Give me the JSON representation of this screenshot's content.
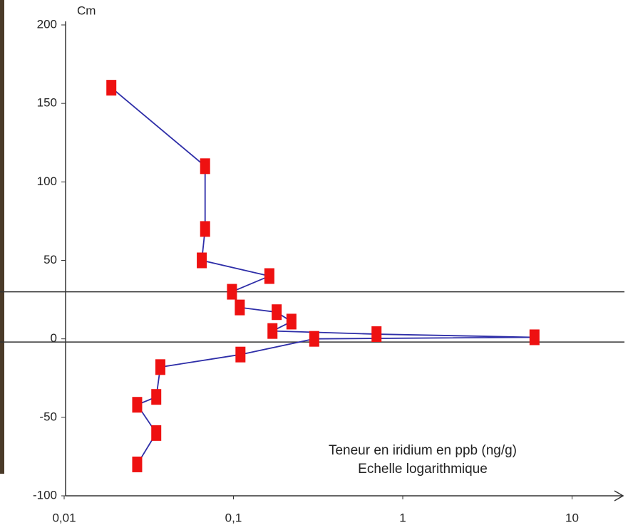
{
  "chart_data": {
    "type": "line",
    "y_label": "Cm",
    "annotations": [
      "Teneur en iridium en ppb (ng/g)",
      "Echelle logarithmique"
    ],
    "x": [
      0.019,
      0.068,
      0.068,
      0.065,
      0.163,
      0.098,
      0.109,
      0.18,
      0.22,
      0.17,
      0.7,
      6.0,
      0.3,
      0.11,
      0.037,
      0.035,
      0.027,
      0.035,
      0.027
    ],
    "values": [
      160,
      110,
      70,
      50,
      40,
      30,
      20,
      17,
      11,
      5,
      3,
      1,
      0,
      -10,
      -18,
      -37,
      -42,
      -60,
      -80
    ],
    "color": "#2e2ea8",
    "marker_color": "#ee1111",
    "x_log": true,
    "xlim": [
      0.01,
      20
    ],
    "xticks": [
      {
        "value": 0.01,
        "label": "0,01"
      },
      {
        "value": 0.1,
        "label": "0,1"
      },
      1,
      10
    ],
    "ylim": [
      -100,
      200
    ],
    "yticks": [
      200,
      150,
      100,
      50,
      0,
      -50,
      -100
    ],
    "reference_lines": [
      30,
      -2
    ],
    "grid": false
  }
}
